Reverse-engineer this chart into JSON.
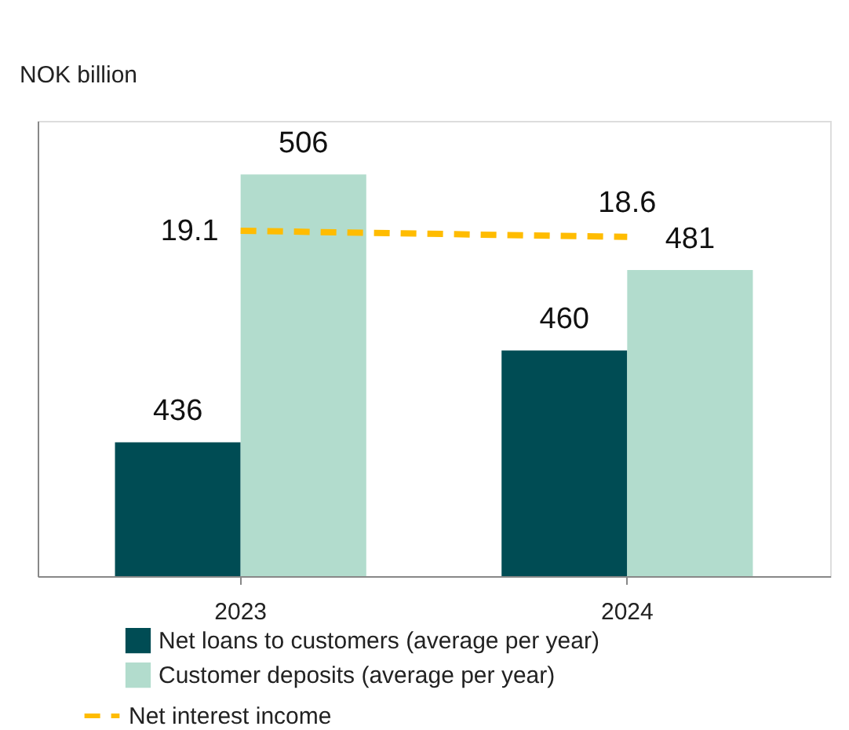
{
  "chart_data": {
    "type": "bar",
    "ylabel": "NOK billion",
    "categories": [
      "2023",
      "2024"
    ],
    "series": [
      {
        "name": "Net loans to customers (average per year)",
        "color": "#004c54",
        "values": [
          436,
          460
        ]
      },
      {
        "name": "Customer deposits (average per year)",
        "color": "#b2dccd",
        "values": [
          506,
          481
        ]
      },
      {
        "name": "Net interest income",
        "color": "#ffbc00",
        "values": [
          19.1,
          18.6
        ],
        "type": "line",
        "axis": "y2",
        "line_style": "dashed"
      }
    ],
    "ylim": [
      401,
      520
    ],
    "data_labels": true,
    "legend": "bottom",
    "grid": false
  }
}
